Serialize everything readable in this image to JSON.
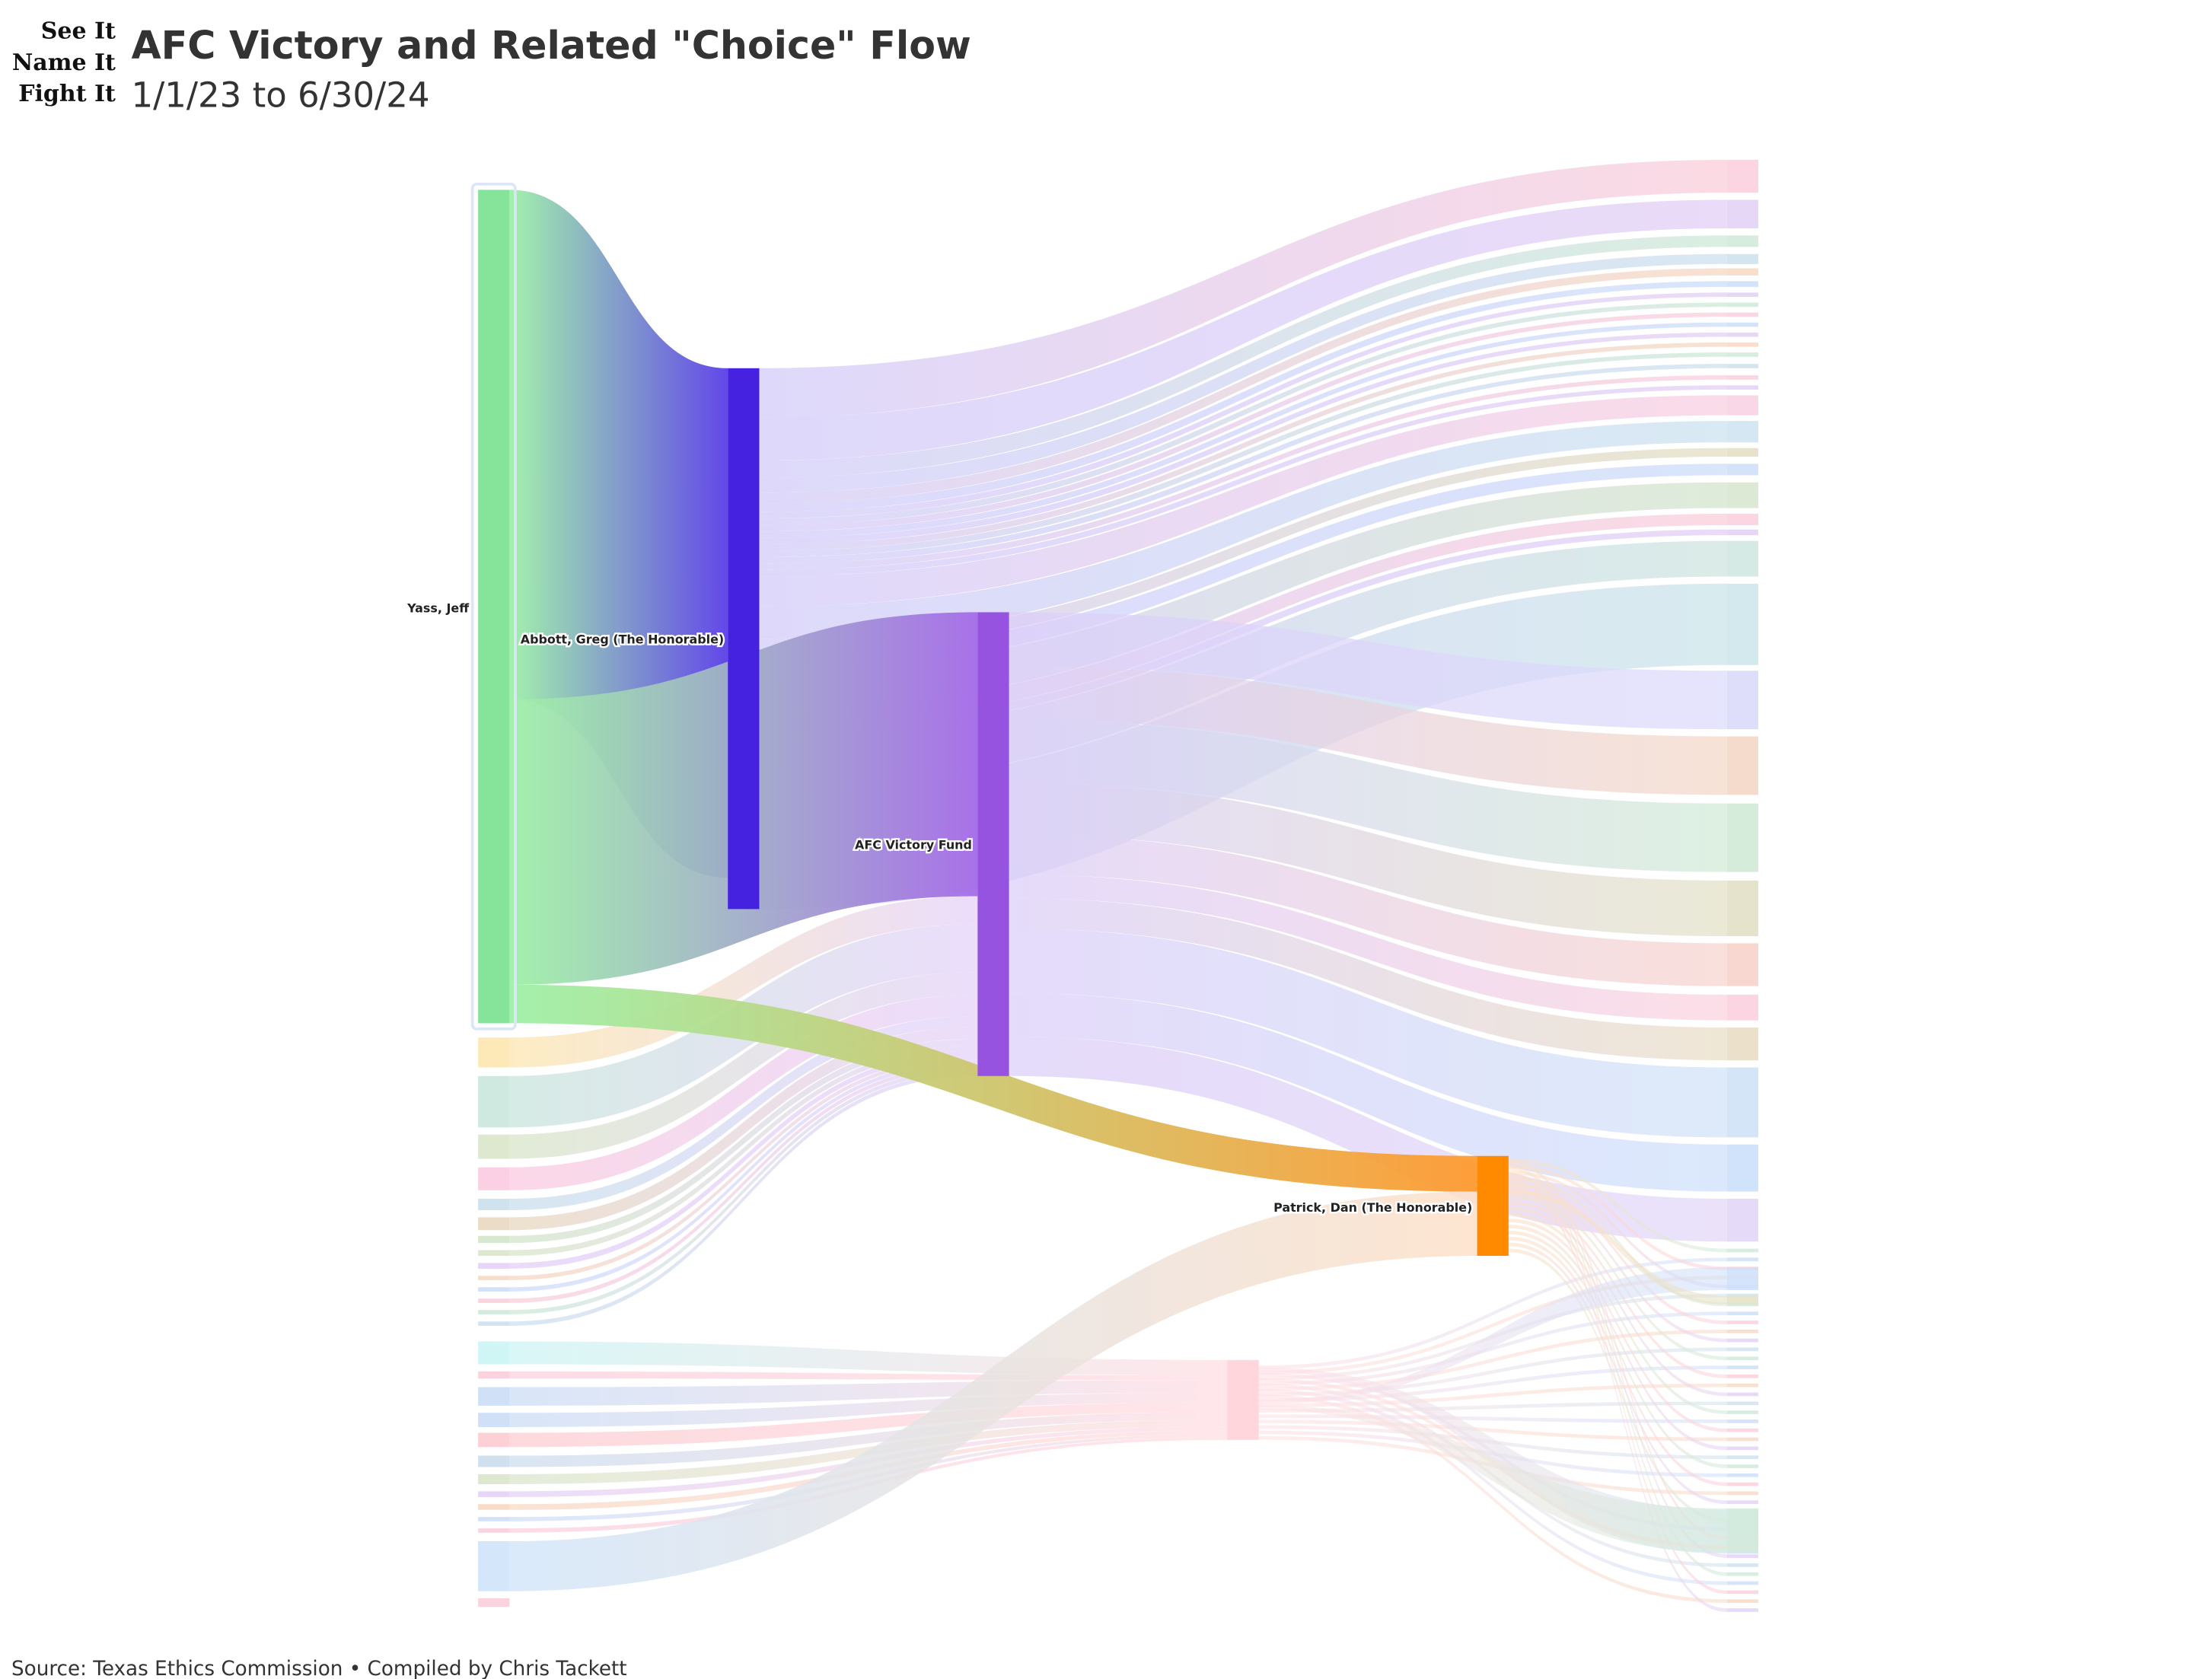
{
  "logo": {
    "lines": [
      "See It",
      "Name It",
      "Fight It"
    ]
  },
  "header": {
    "title": "AFC Victory and Related \"Choice\" Flow",
    "subtitle": "1/1/23 to 6/30/24"
  },
  "nodes": [
    {
      "label": "Yass, Jeff"
    },
    {
      "label": "Abbott, Greg (The Honorable)"
    },
    {
      "label": "AFC Victory Fund"
    },
    {
      "label": "Patrick, Dan (The Honorable)"
    }
  ],
  "footer": {
    "source": "Source: Texas Ethics Commission • Compiled by Chris Tackett"
  }
}
